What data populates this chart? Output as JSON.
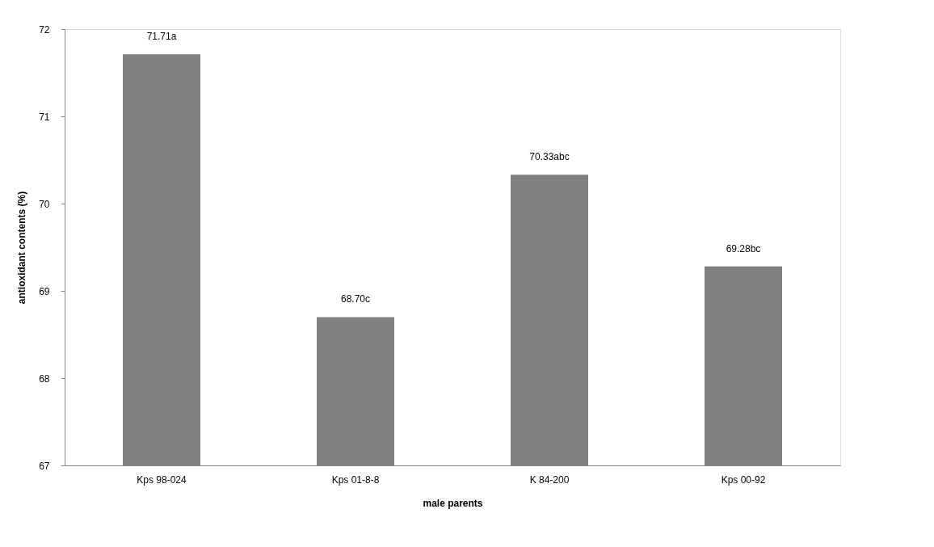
{
  "chart_data": {
    "type": "bar",
    "xlabel": "male parents",
    "ylabel": "antioxidant contents (%)",
    "categories": [
      "Kps 98-024",
      "Kps 01-8-8",
      "K 84-200",
      "Kps 00-92"
    ],
    "values": [
      71.71,
      68.7,
      70.33,
      69.28
    ],
    "value_labels": [
      "71.71a",
      "68.70c",
      "70.33abc",
      "69.28bc"
    ],
    "color": "#808080",
    "ylim": [
      67,
      72
    ],
    "yticks": [
      67,
      68,
      69,
      70,
      71,
      72
    ],
    "grid": false
  }
}
